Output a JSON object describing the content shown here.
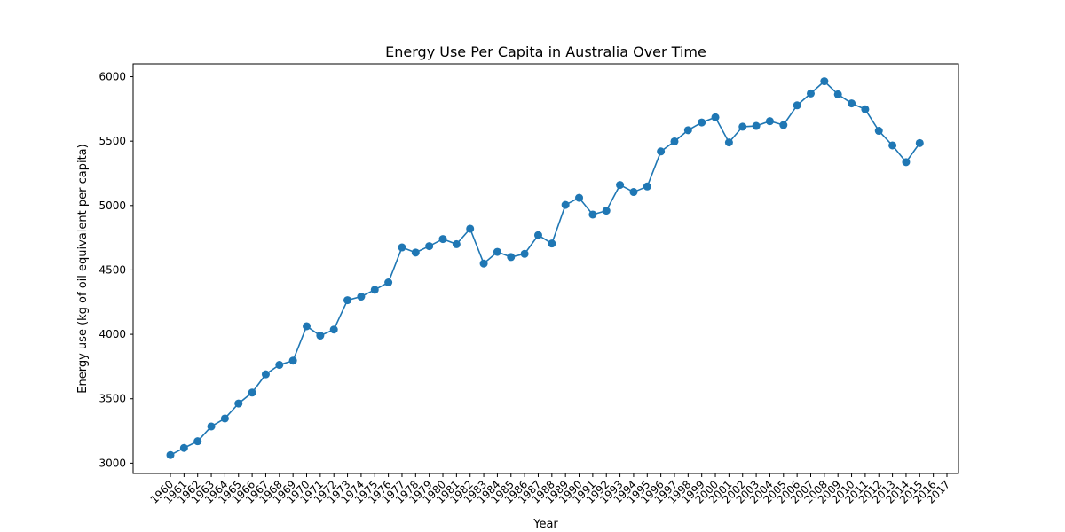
{
  "chart_data": {
    "type": "line",
    "title": "Energy Use Per Capita in Australia Over Time",
    "xlabel": "Year",
    "ylabel": "Energy use (kg of oil equivalent per capita)",
    "ylim": [
      2920,
      6100
    ],
    "yticks": [
      3000,
      3500,
      4000,
      4500,
      5000,
      5500,
      6000
    ],
    "x": [
      1960,
      1961,
      1962,
      1963,
      1964,
      1965,
      1966,
      1967,
      1968,
      1969,
      1970,
      1971,
      1972,
      1973,
      1974,
      1975,
      1976,
      1977,
      1978,
      1979,
      1980,
      1981,
      1982,
      1983,
      1984,
      1985,
      1986,
      1987,
      1988,
      1989,
      1990,
      1991,
      1992,
      1993,
      1994,
      1995,
      1996,
      1997,
      1998,
      1999,
      2000,
      2001,
      2002,
      2003,
      2004,
      2005,
      2006,
      2007,
      2008,
      2009,
      2010,
      2011,
      2012,
      2013,
      2014,
      2015,
      2016,
      2017
    ],
    "series": [
      {
        "color": "#1f77b4",
        "marker": "circle",
        "values": [
          3063,
          3118,
          3170,
          3285,
          3347,
          3463,
          3548,
          3690,
          3763,
          3796,
          4063,
          3990,
          4037,
          4265,
          4293,
          4346,
          4403,
          4675,
          4635,
          4685,
          4740,
          4700,
          4820,
          4550,
          4640,
          4600,
          4625,
          4770,
          4705,
          5005,
          5060,
          4930,
          4960,
          5160,
          5105,
          5148,
          5420,
          5498,
          5585,
          5645,
          5685,
          5490,
          5612,
          5618,
          5655,
          5625,
          5778,
          5870,
          5965,
          5863,
          5793,
          5747,
          5580,
          5467,
          5337,
          5485,
          null,
          null
        ]
      }
    ],
    "grid": false,
    "legend": "none"
  }
}
